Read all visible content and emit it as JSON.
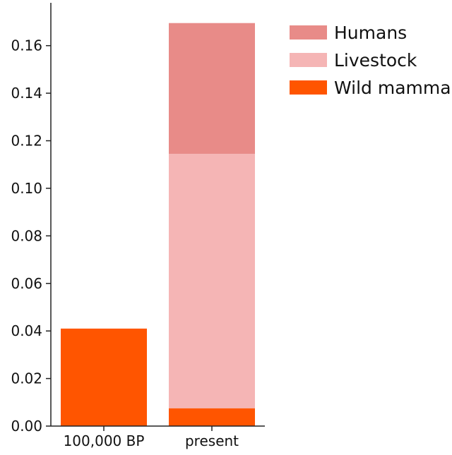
{
  "chart_data": {
    "type": "bar",
    "stacked": true,
    "categories": [
      "100,000 BP",
      "present"
    ],
    "series": [
      {
        "name": "Wild mammals",
        "values": [
          0.041,
          0.0075
        ],
        "color": "#FF5500"
      },
      {
        "name": "Livestock",
        "values": [
          0,
          0.107
        ],
        "color": "#F5B5B5"
      },
      {
        "name": "Humans",
        "values": [
          0,
          0.055
        ],
        "color": "#E88B88"
      }
    ],
    "yticks": [
      "0.00",
      "0.02",
      "0.04",
      "0.06",
      "0.08",
      "0.10",
      "0.12",
      "0.14",
      "0.16"
    ],
    "ylim": [
      0,
      0.17
    ],
    "legend": {
      "placement": "top-right",
      "order": [
        "Humans",
        "Livestock",
        "Wild mammals"
      ],
      "visible_labels": [
        "Humans",
        "Livestock",
        "Wild mamma"
      ]
    },
    "grid": false,
    "title": "",
    "xlabel": "",
    "ylabel": ""
  }
}
